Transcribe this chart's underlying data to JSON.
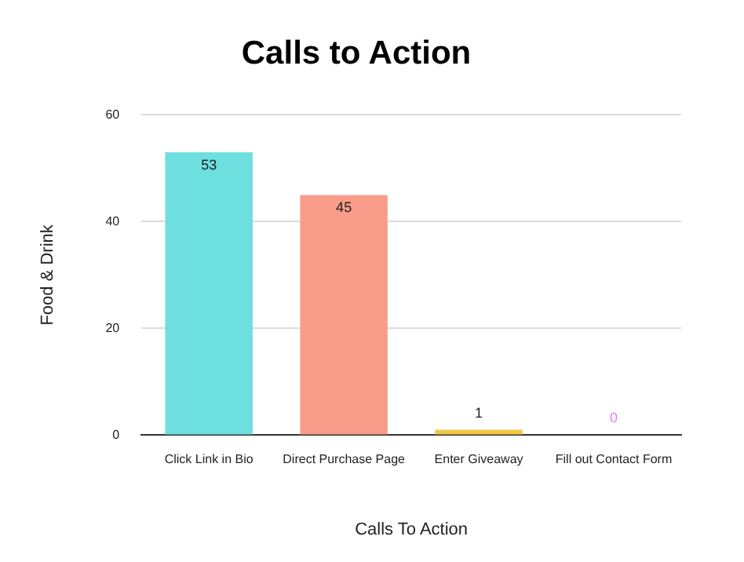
{
  "chart_data": {
    "type": "bar",
    "title": "Calls to Action",
    "xlabel": "Calls To Action",
    "ylabel": "Food & Drink",
    "categories": [
      "Click Link in Bio",
      "Direct Purchase Page",
      "Enter Giveaway",
      "Fill out Contact Form"
    ],
    "values": [
      53,
      45,
      1,
      0
    ],
    "colors": [
      "#6ddfdf",
      "#f99c8a",
      "#f3c744",
      "#e879f9"
    ],
    "ylim": [
      0,
      60
    ],
    "yticks": [
      0,
      20,
      40,
      60
    ],
    "grid": "y",
    "legend": false,
    "data_labels": true
  }
}
